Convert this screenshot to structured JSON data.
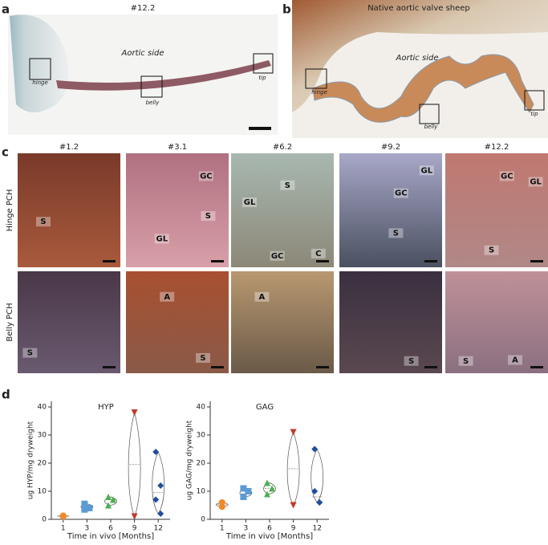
{
  "panel_a": {
    "letter": "a",
    "title": "#12.2",
    "side": "Aortic side",
    "regions": [
      "hinge",
      "belly",
      "tip"
    ]
  },
  "panel_b": {
    "letter": "b",
    "title": "Native aortic valve sheep",
    "side": "Aortic side",
    "regions": [
      "hinge",
      "belly",
      "tip"
    ]
  },
  "panel_c": {
    "letter": "c",
    "columns": [
      "#1.2",
      "#3.1",
      "#6.2",
      "#9.2",
      "#12.2"
    ],
    "rows": [
      "Hinge PCH",
      "Belly PCH"
    ],
    "labels": [
      [
        [
          "S"
        ],
        [
          "GC",
          "S",
          "GL"
        ],
        [
          "S",
          "GL",
          "GC",
          "C"
        ],
        [
          "GL",
          "GC",
          "S"
        ],
        [
          "GC",
          "GL",
          "S"
        ]
      ],
      [
        [
          "S"
        ],
        [
          "A",
          "S"
        ],
        [
          "A"
        ],
        [
          "S"
        ],
        [
          "S",
          "A"
        ]
      ]
    ]
  },
  "panel_d": {
    "letter": "d"
  },
  "chart_data": [
    {
      "type": "violin",
      "title": "HYP",
      "y_label": "ug HYP/mg dryweight",
      "x_label": "Time in vivo [Months]",
      "categories": [
        "1",
        "3",
        "6",
        "9",
        "12"
      ],
      "ylim": [
        0,
        42
      ],
      "yticks": [
        0,
        10,
        20,
        30,
        40
      ],
      "groups": [
        {
          "color": "#f08a24",
          "marker": "circle",
          "values": [
            1,
            1.3
          ]
        },
        {
          "color": "#5b9bd5",
          "marker": "square",
          "values": [
            3.5,
            4,
            5.5
          ]
        },
        {
          "color": "#4caf50",
          "marker": "triangle",
          "values": [
            5,
            7,
            8
          ]
        },
        {
          "color": "#c0392b",
          "marker": "triangle-down",
          "values": [
            38,
            1
          ]
        },
        {
          "color": "#1f4e9c",
          "marker": "diamond",
          "values": [
            24,
            12,
            7,
            2
          ]
        }
      ]
    },
    {
      "type": "violin",
      "title": "GAG",
      "y_label": "ug GAG/mg dryweight",
      "x_label": "Time in vivo [Months]",
      "categories": [
        "1",
        "3",
        "6",
        "9",
        "12"
      ],
      "ylim": [
        0,
        42
      ],
      "yticks": [
        0,
        10,
        20,
        30,
        40
      ],
      "groups": [
        {
          "color": "#f08a24",
          "marker": "circle",
          "values": [
            4.5,
            6
          ]
        },
        {
          "color": "#5b9bd5",
          "marker": "square",
          "values": [
            8,
            10,
            11
          ]
        },
        {
          "color": "#4caf50",
          "marker": "triangle",
          "values": [
            9,
            11,
            13
          ]
        },
        {
          "color": "#c0392b",
          "marker": "triangle-down",
          "values": [
            31,
            5
          ]
        },
        {
          "color": "#1f4e9c",
          "marker": "diamond",
          "values": [
            25,
            6,
            10,
            6
          ]
        }
      ]
    }
  ]
}
